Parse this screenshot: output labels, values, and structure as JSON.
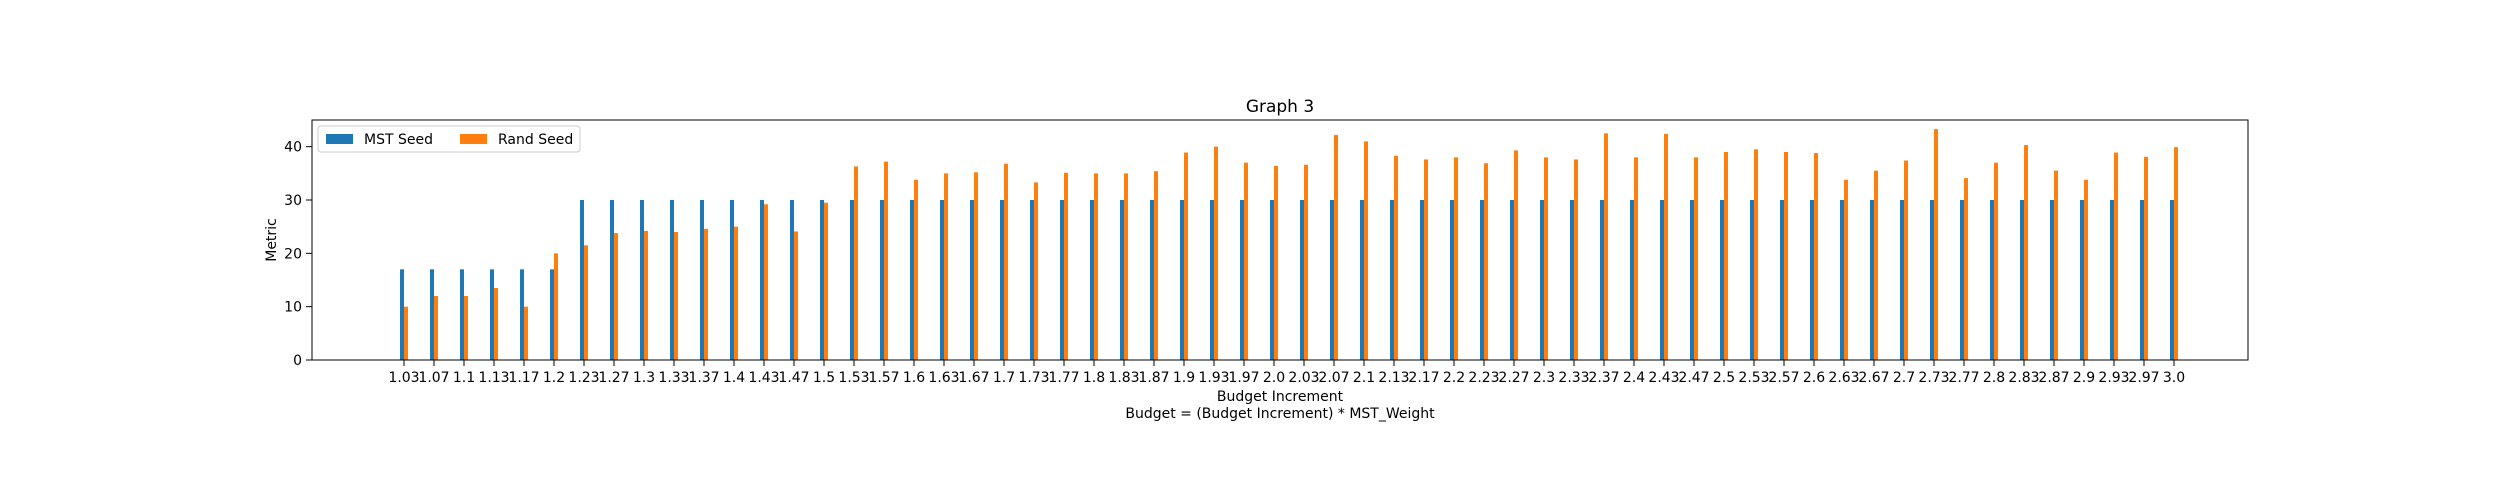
{
  "chart_data": {
    "type": "bar",
    "title": "Graph 3",
    "xlabel": "Budget Increment",
    "xlabel_note": "Budget = (Budget Increment) * MST_Weight",
    "ylabel": "Metric",
    "ylim": [
      0,
      45
    ],
    "yticks": [
      0,
      10,
      20,
      30,
      40
    ],
    "grid": false,
    "legend_position": "top-left",
    "categories": [
      "1.03",
      "1.07",
      "1.1",
      "1.13",
      "1.17",
      "1.2",
      "1.23",
      "1.27",
      "1.3",
      "1.33",
      "1.37",
      "1.4",
      "1.43",
      "1.47",
      "1.5",
      "1.53",
      "1.57",
      "1.6",
      "1.63",
      "1.67",
      "1.7",
      "1.73",
      "1.77",
      "1.8",
      "1.83",
      "1.87",
      "1.9",
      "1.93",
      "1.97",
      "2.0",
      "2.03",
      "2.07",
      "2.1",
      "2.13",
      "2.17",
      "2.2",
      "2.23",
      "2.27",
      "2.3",
      "2.33",
      "2.37",
      "2.4",
      "2.43",
      "2.47",
      "2.5",
      "2.53",
      "2.57",
      "2.6",
      "2.63",
      "2.67",
      "2.7",
      "2.73",
      "2.77",
      "2.8",
      "2.83",
      "2.87",
      "2.9",
      "2.93",
      "2.97",
      "3.0"
    ],
    "series": [
      {
        "name": "MST Seed",
        "color": "#1f77b4",
        "values": [
          17,
          17,
          17,
          17,
          17,
          17,
          30,
          30,
          30,
          30,
          30,
          30,
          30,
          30,
          30,
          30,
          30,
          30,
          30,
          30,
          30,
          30,
          30,
          30,
          30,
          30,
          30,
          30,
          30,
          30,
          30,
          30,
          30,
          30,
          30,
          30,
          30,
          30,
          30,
          30,
          30,
          30,
          30,
          30,
          30,
          30,
          30,
          30,
          30,
          30,
          30,
          30,
          30,
          30,
          30,
          30,
          30,
          30,
          30,
          30
        ]
      },
      {
        "name": "Rand Seed",
        "color": "#ff7f0e",
        "values": [
          10,
          12,
          12,
          13.5,
          10,
          20,
          21.5,
          23.8,
          24.2,
          24,
          24.6,
          25,
          29.2,
          24.1,
          29.5,
          36.3,
          37.2,
          33.8,
          35,
          35.2,
          36.8,
          33.3,
          35.1,
          35,
          35,
          35.4,
          38.9,
          40,
          37,
          36.4,
          36.6,
          42.2,
          41,
          38.3,
          37.6,
          38,
          36.9,
          39.3,
          38,
          37.6,
          42.5,
          38,
          42.4,
          38,
          39,
          39.5,
          39,
          38.8,
          33.8,
          35.5,
          37.4,
          43.3,
          34.1,
          37,
          40.3,
          35.5,
          33.8,
          38.9,
          38.1,
          39.9
        ]
      }
    ]
  }
}
